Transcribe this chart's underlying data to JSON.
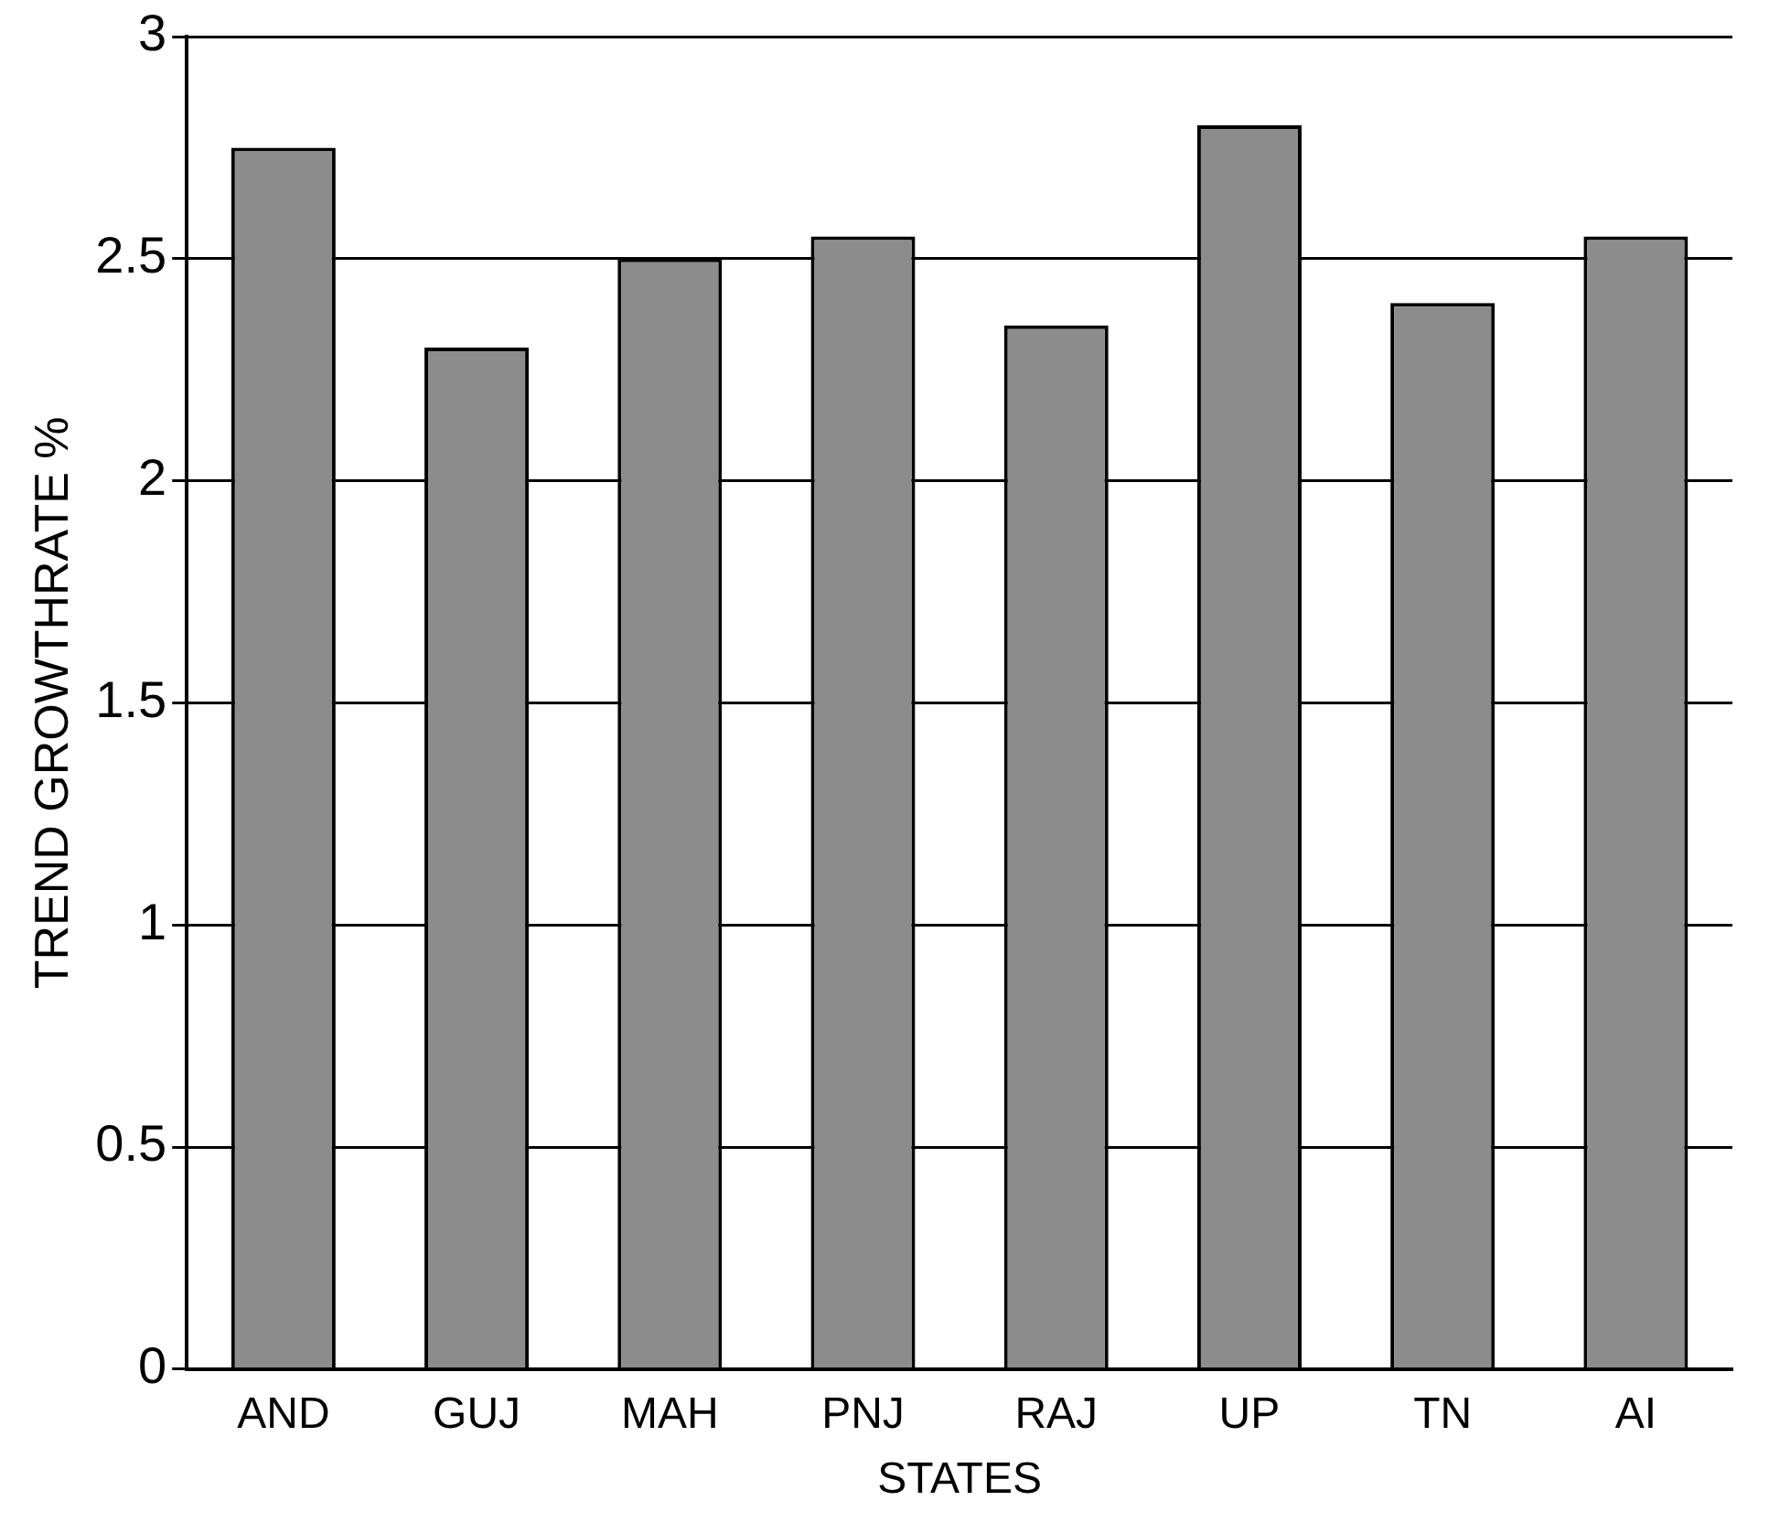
{
  "chart_data": {
    "type": "bar",
    "xlabel": "STATES",
    "ylabel": "TREND GROWTHRATE %",
    "categories": [
      "AND",
      "GUJ",
      "MAH",
      "PNJ",
      "RAJ",
      "UP",
      "TN",
      "AI"
    ],
    "values": [
      2.75,
      2.3,
      2.5,
      2.55,
      2.35,
      2.8,
      2.4,
      2.55
    ],
    "color": "#8c8c8c",
    "ylim": [
      0,
      3
    ],
    "yticks": [
      0,
      0.5,
      1,
      1.5,
      2,
      2.5,
      3
    ],
    "grid": "y",
    "legend": false
  }
}
